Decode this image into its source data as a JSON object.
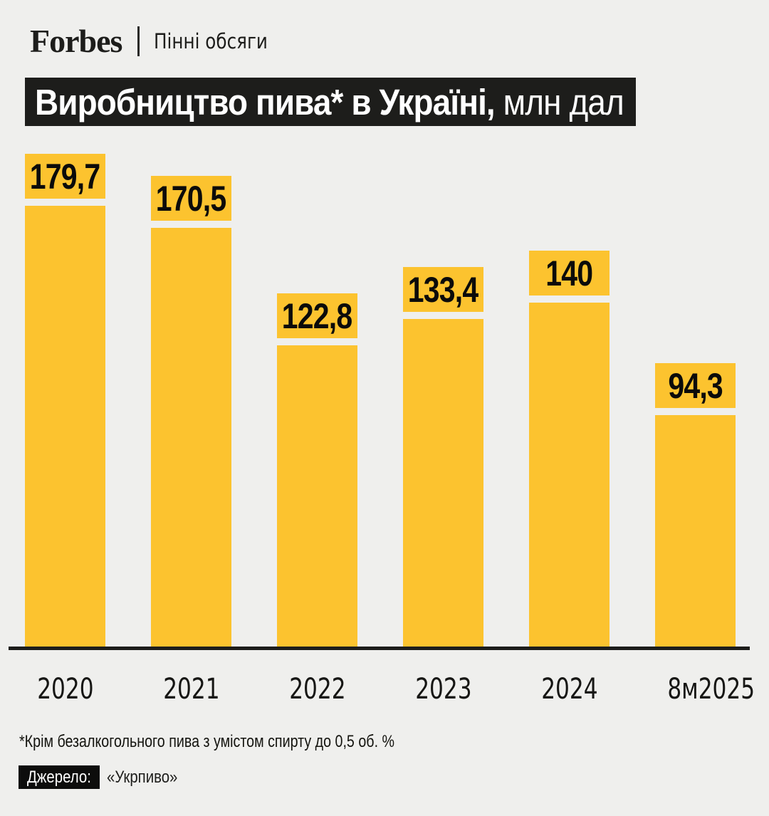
{
  "header": {
    "brand": "Forbes",
    "rubric": "Пінні обсяги"
  },
  "title": {
    "main": "Виробництво пива* в Україні,",
    "unit": " млн дал"
  },
  "chart_data": {
    "type": "bar",
    "title": "Виробництво пива* в Україні, млн дал",
    "unit": "млн дал",
    "categories": [
      "2020",
      "2021",
      "2022",
      "2023",
      "2024",
      "8м2025"
    ],
    "values": [
      179.7,
      170.5,
      122.8,
      133.4,
      140,
      94.3
    ],
    "value_labels": [
      "179,7",
      "170,5",
      "122,8",
      "133,4",
      "140",
      "94,3"
    ],
    "ylim": [
      0,
      190
    ],
    "grid": false,
    "legend": false,
    "bar_color": "#fcc32f",
    "value_label_style": "yellow chip above each bar"
  },
  "footnote": "*Крім безалкогольного пива з умістом спирту до 0,5 об. %",
  "source": {
    "label": "Джерело:",
    "value": "«Укрпиво»"
  },
  "colors": {
    "background": "#efefed",
    "bar": "#fcc32f",
    "dark": "#1d1d1b",
    "title_text": "#ffffff"
  }
}
